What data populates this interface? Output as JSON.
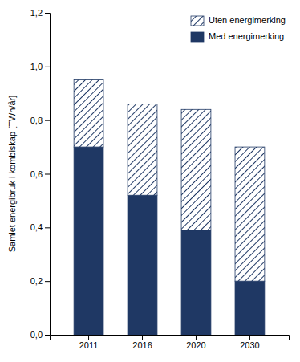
{
  "chart_data": {
    "type": "bar",
    "stacked": true,
    "categories": [
      "2011",
      "2016",
      "2020",
      "2030"
    ],
    "series": [
      {
        "name": "Med energimerking",
        "color": "#1F3864",
        "values": [
          0.7,
          0.52,
          0.39,
          0.2
        ]
      },
      {
        "name": "Uten energimerking",
        "color": "#1F3864",
        "values": [
          0.25,
          0.34,
          0.45,
          0.5
        ]
      }
    ],
    "ylabel": "Samlet energibruk i kombiskap [TWh/år]",
    "ylim": [
      0,
      1.2
    ],
    "yticks": [
      {
        "value": 0.0,
        "label": "0,0"
      },
      {
        "value": 0.2,
        "label": "0,2"
      },
      {
        "value": 0.4,
        "label": "0,4"
      },
      {
        "value": 0.6,
        "label": "0,6"
      },
      {
        "value": 0.8,
        "label": "0,8"
      },
      {
        "value": 1.0,
        "label": "1,0"
      },
      {
        "value": 1.2,
        "label": "1,2"
      }
    ],
    "grid": false,
    "legend": "upper right"
  }
}
